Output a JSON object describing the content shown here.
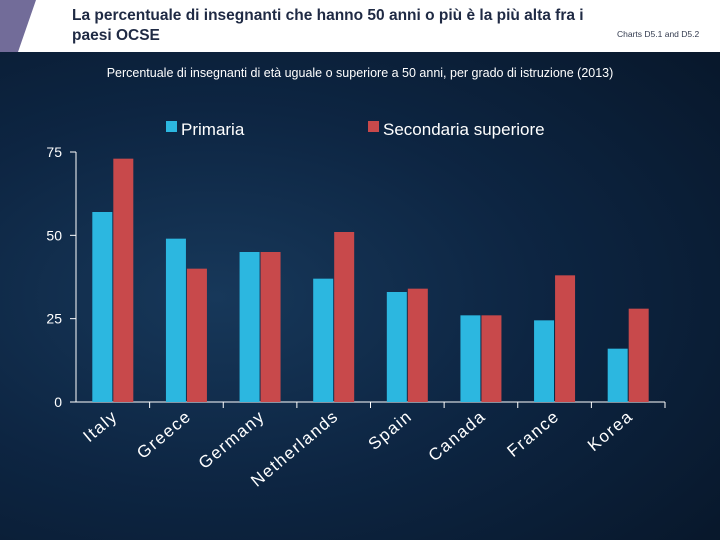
{
  "header": {
    "title": "La percentuale di insegnanti che hanno 50 anni o più è la più alta fra i paesi OCSE",
    "charts_ref": "Charts D5.1 and D5.2"
  },
  "colors": {
    "primaria": "#2cb7e0",
    "secondaria": "#c8494b",
    "axis": "#ffffff",
    "header_accent": "#726c99"
  },
  "chart_data": {
    "type": "bar",
    "title": "Percentuale di insegnanti di età uguale o superiore a 50 anni, per grado di istruzione (2013)",
    "categories": [
      "Italy",
      "Greece",
      "Germany",
      "Netherlands",
      "Spain",
      "Canada",
      "France",
      "Korea"
    ],
    "series": [
      {
        "name": "Primaria",
        "values": [
          57,
          49,
          45,
          37,
          33,
          26,
          24.5,
          16
        ]
      },
      {
        "name": "Secondaria superiore",
        "values": [
          73,
          40,
          45,
          51,
          34,
          26,
          38,
          28
        ]
      }
    ],
    "y_ticks": [
      "0",
      "25",
      "50",
      "75"
    ],
    "ylim": [
      0,
      75
    ],
    "xlabel": "",
    "ylabel": "",
    "legend_position": "top",
    "grid": false
  }
}
